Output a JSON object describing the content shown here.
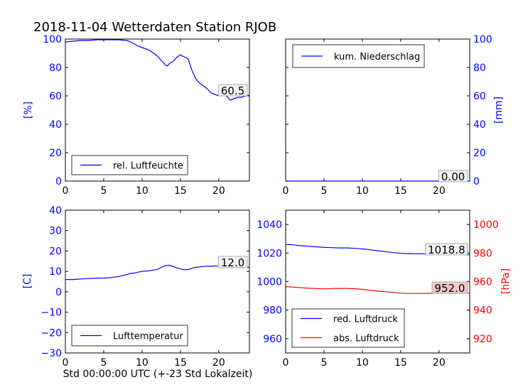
{
  "title": "2018-11-04 Wetterdaten Station RJOB",
  "xlabel": "Std 00:00:00 UTC (+-23 Std Lokalzeit)",
  "chart_data": [
    {
      "type": "line",
      "ylabel": "[%]",
      "xlim": [
        0,
        24
      ],
      "ylim": [
        0,
        100
      ],
      "xticks": [
        0,
        5,
        10,
        15,
        20
      ],
      "yticks": [
        0,
        20,
        40,
        60,
        80,
        100
      ],
      "legend": "lower-left",
      "last_value": "60.5",
      "series": [
        {
          "name": "rel. Luftfeuchte",
          "color": "#0000ff",
          "x": [
            0,
            1,
            2,
            3,
            4,
            5,
            6,
            7,
            8,
            8.5,
            9,
            9.5,
            10,
            10.5,
            11,
            11.5,
            12,
            12.5,
            13,
            13.3,
            13.6,
            14,
            14.5,
            15,
            15.3,
            15.7,
            16,
            16.5,
            17,
            17.5,
            18,
            18.5,
            19,
            19.5,
            20,
            20.5,
            21,
            21.5,
            22,
            22.5,
            23,
            23.5,
            24
          ],
          "y": [
            98,
            98.5,
            99,
            99,
            99.5,
            99.5,
            99.5,
            99.5,
            99,
            98,
            96.5,
            95,
            94,
            93,
            92,
            90,
            88,
            85,
            82,
            81,
            83,
            84,
            87,
            89,
            88,
            87,
            86,
            78,
            72,
            69,
            67,
            65,
            62,
            61,
            60,
            61,
            60,
            57,
            58,
            59,
            59,
            60,
            60.5
          ]
        }
      ]
    },
    {
      "type": "line",
      "ylabel": "[mm]",
      "xlim": [
        0,
        24
      ],
      "ylim": [
        0,
        100
      ],
      "xticks": [
        0,
        5,
        10,
        15,
        20
      ],
      "yticks": [
        0,
        20,
        40,
        60,
        80,
        100
      ],
      "y_axis_side": "right",
      "legend": "top-left",
      "last_value": "0.00",
      "series": [
        {
          "name": "kum. Niederschlag",
          "color": "#0000ff",
          "x": [
            0,
            24
          ],
          "y": [
            0,
            0
          ]
        }
      ]
    },
    {
      "type": "line",
      "ylabel": "[C]",
      "xlim": [
        0,
        24
      ],
      "ylim": [
        -30,
        40
      ],
      "xticks": [
        0,
        5,
        10,
        15,
        20
      ],
      "yticks": [
        -30,
        -20,
        -10,
        0,
        10,
        20,
        30,
        40
      ],
      "legend": "lower-left",
      "last_value": "12.0",
      "series": [
        {
          "name": "Lufttemperatur",
          "color": "#0000ff",
          "x": [
            0,
            1,
            2,
            3,
            4,
            5,
            6,
            7,
            8,
            8.5,
            9,
            10,
            11,
            12,
            12.5,
            13,
            13.5,
            14,
            14.5,
            15,
            15.5,
            16,
            16.5,
            17,
            17.5,
            18,
            18.5,
            19,
            19.5,
            20,
            20.5,
            21,
            21.5,
            22,
            22.5,
            23,
            23.5,
            24
          ],
          "y": [
            6,
            6,
            6.3,
            6.5,
            6.6,
            6.7,
            7,
            7.5,
            8.5,
            9,
            9.2,
            10,
            10.3,
            11,
            12,
            12.8,
            13,
            12.5,
            11.8,
            11.2,
            10.8,
            10.9,
            11.5,
            12,
            12.2,
            12.4,
            12.6,
            12.5,
            12.7,
            12.5,
            12.3,
            12.2,
            12,
            12,
            12.1,
            12,
            12,
            12
          ]
        }
      ]
    },
    {
      "type": "line",
      "ylabel": "[hPa]",
      "xlim": [
        0,
        24
      ],
      "ylim": [
        950,
        1050
      ],
      "ylim_right": [
        910,
        1010
      ],
      "xticks": [
        0,
        5,
        10,
        15,
        20
      ],
      "yticks": [
        960,
        980,
        1000,
        1020,
        1040
      ],
      "yticks_right": [
        920,
        940,
        960,
        980,
        1000
      ],
      "legend": "lower-left",
      "series": [
        {
          "name": "red. Luftdruck",
          "color": "#0000ff",
          "axis": "left",
          "last_value": "1018.8",
          "x": [
            0,
            1,
            2,
            3,
            4,
            5,
            6,
            7,
            8,
            9,
            10,
            11,
            12,
            13,
            14,
            15,
            16,
            17,
            18,
            19,
            20,
            21,
            22,
            23,
            24
          ],
          "y": [
            1026,
            1025.7,
            1025.1,
            1024.7,
            1024.4,
            1024,
            1023.8,
            1023.6,
            1023.6,
            1023.3,
            1022.9,
            1022.3,
            1021.6,
            1021,
            1020.3,
            1019.8,
            1019.6,
            1019.5,
            1019.5,
            1019.4,
            1019.2,
            1019.1,
            1019,
            1018.9,
            1018.8
          ]
        },
        {
          "name": "abs. Luftdruck",
          "color": "#ff0000",
          "axis": "right",
          "last_value": "952.0",
          "x": [
            0,
            1,
            2,
            3,
            4,
            5,
            6,
            7,
            8,
            9,
            10,
            11,
            12,
            13,
            14,
            15,
            16,
            17,
            18,
            19,
            20,
            21,
            22,
            23,
            24
          ],
          "y": [
            956.5,
            956.1,
            955.7,
            955.3,
            955.1,
            954.9,
            955.1,
            955.2,
            955.2,
            955,
            954.6,
            953.9,
            953.3,
            952.9,
            952.4,
            951.9,
            951.7,
            951.7,
            951.7,
            951.8,
            951.9,
            951.9,
            952,
            952,
            952
          ]
        }
      ]
    }
  ]
}
